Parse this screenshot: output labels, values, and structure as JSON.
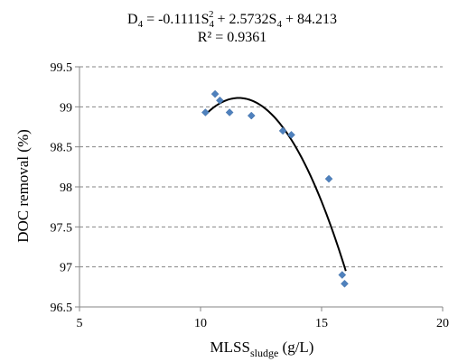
{
  "chart_data": {
    "type": "scatter",
    "equation": {
      "D_prefix": "D",
      "D_sub": "4",
      "mid1": " = -0.1111S",
      "S1_sub": "4",
      "sup": "2",
      "mid2": " + 2.5732S",
      "S2_sub": "4",
      "tail": " + 84.213"
    },
    "r_squared": "R² = 0.9361",
    "xlabel": {
      "main": "MLSS",
      "sub": "sludge",
      "unit": " (g/L)"
    },
    "ylabel": "DOC removal (%)",
    "xlim": [
      5,
      20
    ],
    "ylim": [
      96.5,
      99.5
    ],
    "x_ticks": [
      {
        "value": 5,
        "label": "5"
      },
      {
        "value": 10,
        "label": "10"
      },
      {
        "value": 15,
        "label": "15"
      },
      {
        "value": 20,
        "label": "20"
      }
    ],
    "y_ticks": [
      {
        "value": 96.5,
        "label": "96.5"
      },
      {
        "value": 97,
        "label": "97"
      },
      {
        "value": 97.5,
        "label": "97.5"
      },
      {
        "value": 98,
        "label": "98"
      },
      {
        "value": 98.5,
        "label": "98.5"
      },
      {
        "value": 99,
        "label": "99"
      },
      {
        "value": 99.5,
        "label": "99.5"
      }
    ],
    "grid": "horizontal dashed",
    "points": [
      {
        "x": 10.2,
        "y": 98.93
      },
      {
        "x": 10.6,
        "y": 99.16
      },
      {
        "x": 10.8,
        "y": 99.08
      },
      {
        "x": 11.2,
        "y": 98.93
      },
      {
        "x": 12.1,
        "y": 98.89
      },
      {
        "x": 13.4,
        "y": 98.7
      },
      {
        "x": 13.75,
        "y": 98.65
      },
      {
        "x": 15.3,
        "y": 98.1
      },
      {
        "x": 15.85,
        "y": 96.9
      },
      {
        "x": 15.95,
        "y": 96.79
      }
    ],
    "trendline": {
      "type": "polynomial",
      "order": 2,
      "x_range": [
        10.2,
        16.0
      ]
    },
    "colors": {
      "marker": "#4f81bd",
      "trendline": "#000000",
      "grid": "#868686",
      "axis": "#868686"
    }
  }
}
